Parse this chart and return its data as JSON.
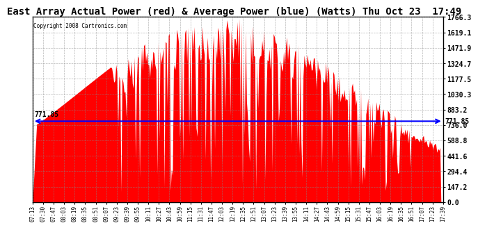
{
  "title": "East Array Actual Power (red) & Average Power (blue) (Watts) Thu Oct 23  17:49",
  "copyright": "Copyright 2008 Cartronics.com",
  "avg_power": 771.85,
  "ymax": 1766.3,
  "ymin": 0.0,
  "yticks": [
    0.0,
    147.2,
    294.4,
    441.6,
    588.8,
    736.0,
    883.2,
    1030.3,
    1177.5,
    1324.7,
    1471.9,
    1619.1,
    1766.3
  ],
  "fill_color": "red",
  "line_color": "blue",
  "background_color": "#ffffff",
  "grid_color": "#888888",
  "title_fontsize": 11,
  "xtick_labels": [
    "07:13",
    "07:30",
    "07:47",
    "08:03",
    "08:19",
    "08:35",
    "08:51",
    "09:07",
    "09:23",
    "09:39",
    "09:55",
    "10:11",
    "10:27",
    "10:43",
    "10:59",
    "11:15",
    "11:31",
    "11:47",
    "12:03",
    "12:19",
    "12:35",
    "12:51",
    "13:07",
    "13:23",
    "13:39",
    "13:55",
    "14:11",
    "14:27",
    "14:43",
    "14:59",
    "15:15",
    "15:31",
    "15:47",
    "16:03",
    "16:19",
    "16:35",
    "16:51",
    "17:07",
    "17:23",
    "17:39"
  ]
}
